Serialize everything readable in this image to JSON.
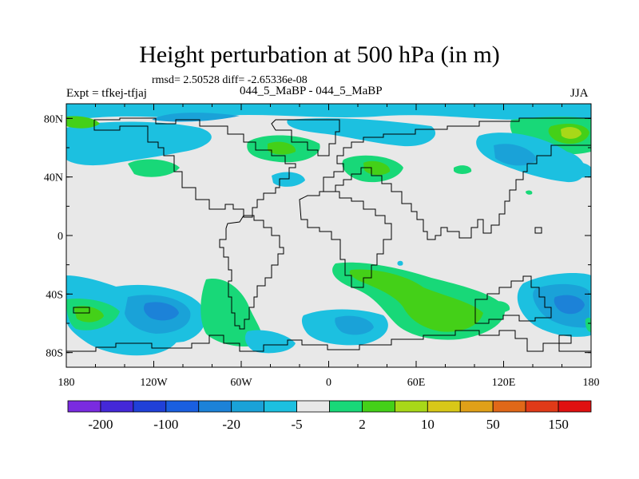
{
  "header": {
    "title": "Height perturbation at 500 hPa (in m)",
    "stats": "rmsd= 2.50528 diff= -2.65336e-08",
    "expt": "Expt = tfkej-tfjaj",
    "center_label": "044_5_MaBP - 044_5_MaBP",
    "season": "JJA"
  },
  "map": {
    "projection": "cylindrical equidistant",
    "lon_range": [
      -180,
      180
    ],
    "lat_range": [
      -90,
      90
    ],
    "lon_ticks": [
      {
        "value": -180,
        "label": "180"
      },
      {
        "value": -120,
        "label": "120W"
      },
      {
        "value": -60,
        "label": "60W"
      },
      {
        "value": 0,
        "label": "0"
      },
      {
        "value": 60,
        "label": "60E"
      },
      {
        "value": 120,
        "label": "120E"
      },
      {
        "value": 180,
        "label": "180"
      }
    ],
    "lat_ticks": [
      {
        "value": 80,
        "label": "80N"
      },
      {
        "value": 40,
        "label": "40N"
      },
      {
        "value": 0,
        "label": "0"
      },
      {
        "value": -40,
        "label": "40S"
      },
      {
        "value": -80,
        "label": "80S"
      }
    ],
    "background_fill": "#e8e8e8",
    "coastline_color": "#000000"
  },
  "colorbar": {
    "colors": [
      "#7a2be0",
      "#4428d8",
      "#2040d8",
      "#1a5fe0",
      "#1c82d8",
      "#1aa2d8",
      "#1cc0e0",
      "#e8e8e8",
      "#18d878",
      "#44d018",
      "#a8d818",
      "#d8c818",
      "#e0a018",
      "#e06818",
      "#e03a18",
      "#e01010"
    ],
    "labels": [
      {
        "index": 1,
        "text": "-200"
      },
      {
        "index": 3,
        "text": "-100"
      },
      {
        "index": 5,
        "text": "-20"
      },
      {
        "index": 7,
        "text": "-5"
      },
      {
        "index": 9,
        "text": "2"
      },
      {
        "index": 11,
        "text": "10"
      },
      {
        "index": 13,
        "text": "50"
      },
      {
        "index": 15,
        "text": "150"
      }
    ]
  },
  "chart_data": {
    "type": "heatmap",
    "contour_levels": [
      -200,
      -150,
      -100,
      -50,
      -20,
      -10,
      -5,
      -2,
      2,
      5,
      10,
      20,
      50,
      100,
      150,
      200
    ],
    "regions": [
      {
        "sign": "negative",
        "band": "-5 to -2",
        "lat_range": [
          75,
          85
        ],
        "lon_range": [
          -180,
          180
        ],
        "note": "arctic belt"
      },
      {
        "sign": "negative",
        "band": "-10 to -5",
        "lat_range": [
          78,
          84
        ],
        "lon_range": [
          -120,
          -60
        ]
      },
      {
        "sign": "negative",
        "band": "-5 to -2",
        "lat_range": [
          50,
          70
        ],
        "lon_range": [
          -180,
          -120
        ]
      },
      {
        "sign": "positive",
        "band": "5 to 10",
        "lat_range": [
          60,
          80
        ],
        "lon_range": [
          150,
          180
        ]
      },
      {
        "sign": "negative",
        "band": "-10 to -5",
        "lat_range": [
          45,
          65
        ],
        "lon_range": [
          110,
          160
        ]
      },
      {
        "sign": "positive",
        "band": "5 to 10",
        "lat_range": [
          55,
          68
        ],
        "lon_range": [
          -55,
          -15
        ]
      },
      {
        "sign": "positive",
        "band": "5 to 10",
        "lat_range": [
          40,
          55
        ],
        "lon_range": [
          10,
          55
        ]
      },
      {
        "sign": "negative",
        "band": "-10 to -5",
        "lat_range": [
          -65,
          -45
        ],
        "lon_range": [
          -145,
          -90
        ]
      },
      {
        "sign": "negative",
        "band": "-5 to -2",
        "lat_range": [
          -75,
          -30
        ],
        "lon_range": [
          -180,
          -80
        ]
      },
      {
        "sign": "positive",
        "band": "5 to 10",
        "lat_range": [
          -70,
          -45
        ],
        "lon_range": [
          40,
          100
        ]
      },
      {
        "sign": "negative",
        "band": "-10 to -5",
        "lat_range": [
          -65,
          -40
        ],
        "lon_range": [
          140,
          180
        ]
      },
      {
        "sign": "negative",
        "band": "-5 to -2",
        "lat_range": [
          -70,
          -55
        ],
        "lon_range": [
          -10,
          40
        ]
      }
    ]
  }
}
